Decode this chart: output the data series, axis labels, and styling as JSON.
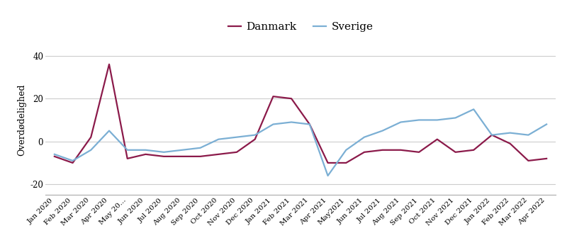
{
  "x_labels": [
    "Jan 2020",
    "Feb 2020",
    "Mar 2020",
    "Apr 2020",
    "May 20...",
    "Jun 2020",
    "Jul 2020",
    "Aug 2020",
    "Sep 2020",
    "Oct 2020",
    "Nov 2020",
    "Dec 2020",
    "Jan 2021",
    "Feb 2021",
    "Mar 2021",
    "Apr 2021",
    "May2021",
    "Jun 2021",
    "Jul 2021",
    "Aug 2021",
    "Sep 2021",
    "Oct 2021",
    "Nov 2021",
    "Dec 2021",
    "Jan 2022",
    "Feb 2022",
    "Mar 2022",
    "Apr 2022"
  ],
  "danmark": [
    -7,
    -10,
    2,
    36,
    -8,
    -6,
    -7,
    -7,
    -7,
    -6,
    -5,
    1,
    21,
    20,
    8,
    -10,
    -10,
    -5,
    -4,
    -4,
    -5,
    1,
    -5,
    -4,
    3,
    -1,
    -9,
    -8
  ],
  "sverige": [
    -6,
    -9,
    -4,
    5,
    -4,
    -4,
    -5,
    -4,
    -3,
    1,
    2,
    3,
    8,
    9,
    8,
    -16,
    -4,
    2,
    5,
    9,
    10,
    10,
    11,
    15,
    3,
    4,
    3,
    8
  ],
  "danmark_color": "#8B1A4A",
  "sverige_color": "#7BAFD4",
  "background_color": "#ffffff",
  "ylabel": "Overdødelighed",
  "yticks": [
    -20,
    0,
    20,
    40
  ],
  "ylim": [
    -25,
    45
  ],
  "legend_labels": [
    "Danmark",
    "Sverige"
  ],
  "legend_fontsize": 11,
  "tick_fontsize": 7.5,
  "ylabel_fontsize": 9,
  "grid_color": "#cccccc",
  "line_width": 1.6
}
